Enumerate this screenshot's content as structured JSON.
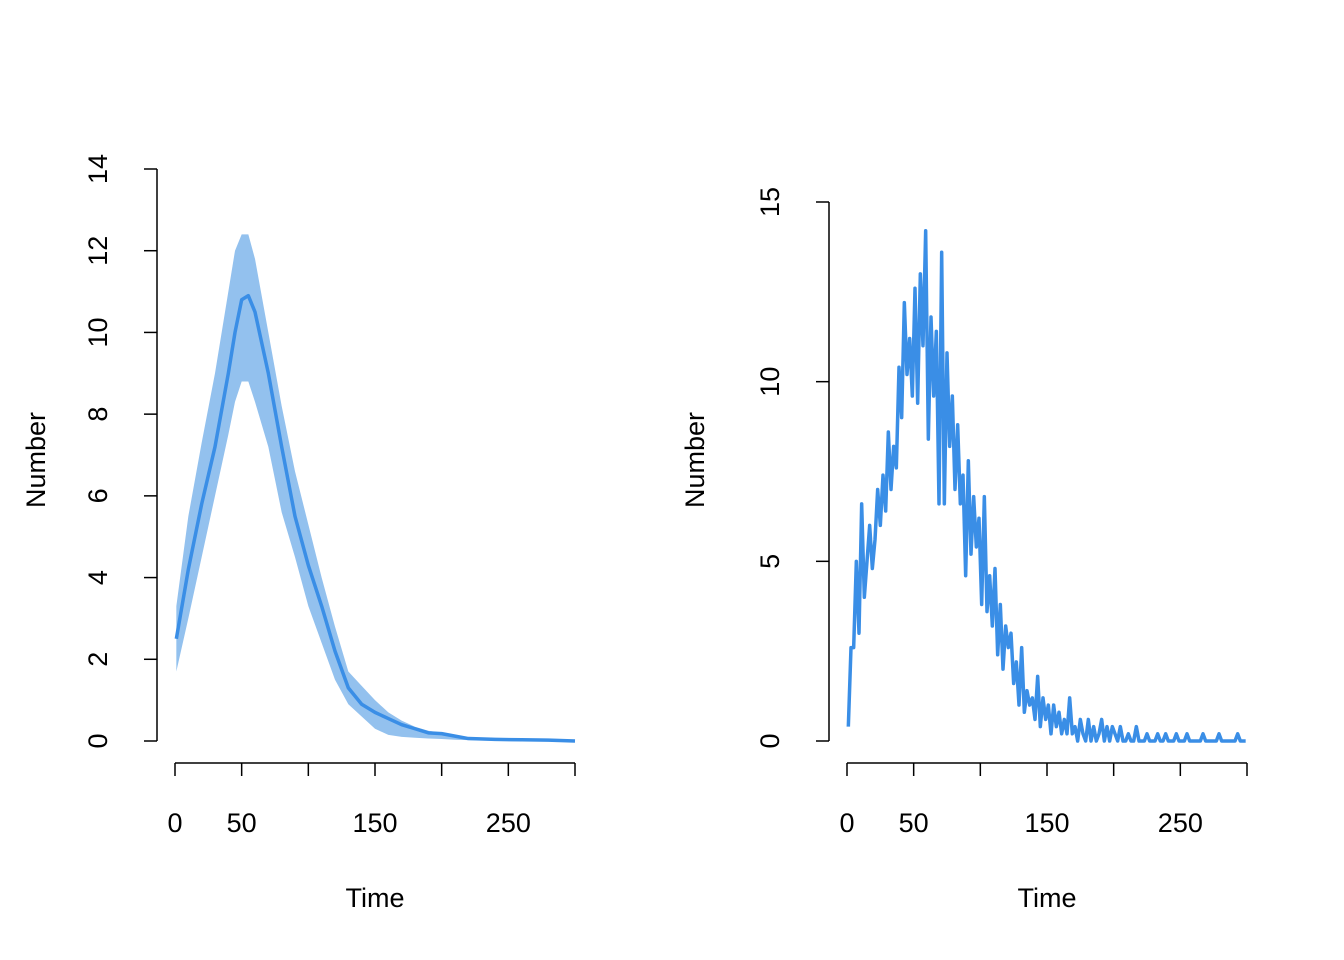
{
  "chart_data": [
    {
      "type": "band-line",
      "xlabel": "Time",
      "ylabel": "Number",
      "x": [
        1,
        10,
        20,
        30,
        40,
        45,
        50,
        55,
        60,
        70,
        80,
        90,
        100,
        110,
        120,
        130,
        140,
        150,
        160,
        170,
        180,
        190,
        200,
        210,
        220,
        240,
        260,
        280,
        300
      ],
      "values": [
        2.5,
        4.2,
        5.8,
        7.2,
        9.0,
        10.0,
        10.8,
        10.9,
        10.5,
        9.0,
        7.2,
        5.5,
        4.3,
        3.3,
        2.2,
        1.3,
        0.9,
        0.7,
        0.55,
        0.4,
        0.3,
        0.2,
        0.18,
        0.12,
        0.06,
        0.04,
        0.03,
        0.02,
        0.0
      ],
      "upper": [
        3.3,
        5.5,
        7.3,
        9.0,
        11.0,
        12.0,
        12.4,
        12.4,
        11.8,
        10.0,
        8.2,
        6.6,
        5.3,
        4.0,
        2.8,
        1.7,
        1.35,
        1.0,
        0.7,
        0.5,
        0.35,
        0.25,
        0.2,
        0.14,
        0.08,
        0.05,
        0.04,
        0.03,
        0.01
      ],
      "lower": [
        1.7,
        3.0,
        4.5,
        6.0,
        7.5,
        8.3,
        8.8,
        8.8,
        8.3,
        7.2,
        5.6,
        4.5,
        3.3,
        2.4,
        1.5,
        0.9,
        0.6,
        0.3,
        0.15,
        0.1,
        0.08,
        0.06,
        0.05,
        0.03,
        0.02,
        0.01,
        0.01,
        0,
        0
      ],
      "color": "#3a8ee6",
      "band_color": "#93c1ee",
      "xlim": [
        0,
        300
      ],
      "ylim": [
        0,
        14
      ],
      "xticks": [
        0,
        50,
        150,
        250
      ],
      "xminor_ticks": [
        100,
        200,
        300
      ],
      "yticks": [
        0,
        2,
        4,
        6,
        8,
        10,
        12,
        14
      ]
    },
    {
      "type": "line",
      "xlabel": "Time",
      "ylabel": "Number",
      "x": [
        1,
        3,
        5,
        7,
        9,
        11,
        13,
        15,
        17,
        19,
        21,
        23,
        25,
        27,
        29,
        31,
        33,
        35,
        37,
        39,
        41,
        43,
        45,
        47,
        49,
        51,
        53,
        55,
        57,
        59,
        61,
        63,
        65,
        67,
        69,
        71,
        73,
        75,
        77,
        79,
        81,
        83,
        85,
        87,
        89,
        91,
        93,
        95,
        97,
        99,
        101,
        103,
        105,
        107,
        109,
        111,
        113,
        115,
        117,
        119,
        121,
        123,
        125,
        127,
        129,
        131,
        133,
        135,
        137,
        139,
        141,
        143,
        145,
        147,
        149,
        151,
        153,
        155,
        157,
        159,
        161,
        163,
        165,
        167,
        169,
        171,
        173,
        175,
        177,
        179,
        181,
        183,
        185,
        187,
        189,
        191,
        193,
        195,
        197,
        199,
        201,
        203,
        205,
        207,
        209,
        211,
        213,
        215,
        217,
        219,
        221,
        223,
        225,
        227,
        229,
        231,
        233,
        235,
        237,
        239,
        241,
        243,
        245,
        247,
        249,
        251,
        253,
        255,
        257,
        259,
        261,
        263,
        265,
        267,
        269,
        271,
        273,
        275,
        277,
        279,
        281,
        283,
        285,
        287,
        289,
        291,
        293,
        295,
        297,
        299
      ],
      "values": [
        0.4,
        2.6,
        2.6,
        5.0,
        3.0,
        6.6,
        4.0,
        5.0,
        6.0,
        4.8,
        5.6,
        7.0,
        6.0,
        7.4,
        6.4,
        8.6,
        7.0,
        8.2,
        7.6,
        10.4,
        9.0,
        12.2,
        10.2,
        11.2,
        9.6,
        12.6,
        9.4,
        13.0,
        11.0,
        14.2,
        8.4,
        11.8,
        9.6,
        11.4,
        6.6,
        13.6,
        6.6,
        10.8,
        8.2,
        9.6,
        7.0,
        8.8,
        6.6,
        7.4,
        4.6,
        7.8,
        5.2,
        6.8,
        5.4,
        6.2,
        3.8,
        6.8,
        3.6,
        4.6,
        3.2,
        4.8,
        2.4,
        3.8,
        2.0,
        3.2,
        2.6,
        3.0,
        1.6,
        2.2,
        1.0,
        2.6,
        0.8,
        1.4,
        1.0,
        1.2,
        0.6,
        1.8,
        0.4,
        1.2,
        0.6,
        1.0,
        0.2,
        1.0,
        0.4,
        0.8,
        0.2,
        0.6,
        0.2,
        1.2,
        0.2,
        0.4,
        0,
        0.6,
        0.2,
        0,
        0.6,
        0,
        0.4,
        0,
        0.2,
        0.6,
        0,
        0.4,
        0,
        0.4,
        0.2,
        0,
        0.4,
        0,
        0,
        0.2,
        0,
        0,
        0.4,
        0,
        0,
        0,
        0.2,
        0,
        0,
        0,
        0.2,
        0,
        0,
        0.2,
        0,
        0,
        0,
        0.2,
        0,
        0,
        0,
        0.2,
        0,
        0,
        0,
        0,
        0,
        0.2,
        0,
        0,
        0,
        0,
        0,
        0.2,
        0,
        0,
        0,
        0,
        0,
        0,
        0.2,
        0,
        0,
        0
      ],
      "color": "#3a8ee6",
      "xlim": [
        0,
        300
      ],
      "ylim": [
        0,
        15
      ],
      "xticks": [
        0,
        50,
        150,
        250
      ],
      "xminor_ticks": [
        100,
        200,
        300
      ],
      "yticks": [
        0,
        5,
        10,
        15
      ]
    }
  ]
}
